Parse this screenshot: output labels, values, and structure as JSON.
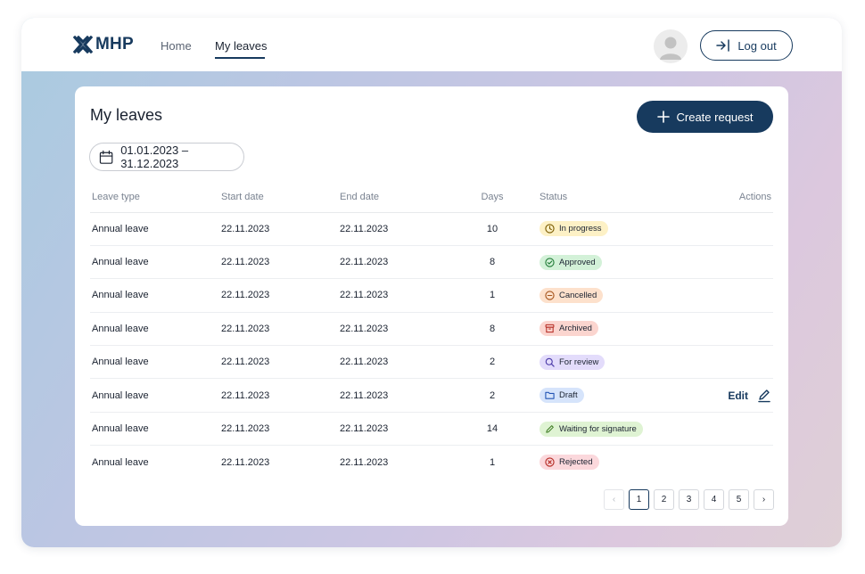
{
  "brand": {
    "name": "MHP"
  },
  "nav": {
    "items": [
      {
        "label": "Home",
        "active": false
      },
      {
        "label": "My leaves",
        "active": true
      }
    ]
  },
  "header": {
    "logout_label": "Log out"
  },
  "main": {
    "title": "My leaves",
    "create_label": "Create request",
    "date_range": "01.01.2023 – 31.12.2023"
  },
  "table": {
    "columns": [
      "Leave type",
      "Start date",
      "End date",
      "Days",
      "Status",
      "Actions"
    ],
    "rows": [
      {
        "type": "Annual leave",
        "start": "22.11.2023",
        "end": "22.11.2023",
        "days": "10",
        "status": "In progress",
        "action": ""
      },
      {
        "type": "Annual leave",
        "start": "22.11.2023",
        "end": "22.11.2023",
        "days": "8",
        "status": "Approved",
        "action": ""
      },
      {
        "type": "Annual leave",
        "start": "22.11.2023",
        "end": "22.11.2023",
        "days": "1",
        "status": "Cancelled",
        "action": ""
      },
      {
        "type": "Annual leave",
        "start": "22.11.2023",
        "end": "22.11.2023",
        "days": "8",
        "status": "Archived",
        "action": ""
      },
      {
        "type": "Annual leave",
        "start": "22.11.2023",
        "end": "22.11.2023",
        "days": "2",
        "status": "For review",
        "action": ""
      },
      {
        "type": "Annual leave",
        "start": "22.11.2023",
        "end": "22.11.2023",
        "days": "2",
        "status": "Draft",
        "action": "Edit"
      },
      {
        "type": "Annual leave",
        "start": "22.11.2023",
        "end": "22.11.2023",
        "days": "14",
        "status": "Waiting for signature",
        "action": ""
      },
      {
        "type": "Annual leave",
        "start": "22.11.2023",
        "end": "22.11.2023",
        "days": "1",
        "status": "Rejected",
        "action": ""
      }
    ]
  },
  "status_styles": {
    "In progress": {
      "bg": "#fdf1c6",
      "fg": "#7a5a00",
      "icon": "clock-icon"
    },
    "Approved": {
      "bg": "#d3f1d8",
      "fg": "#1f7a35",
      "icon": "check-circle-icon"
    },
    "Cancelled": {
      "bg": "#fde1cc",
      "fg": "#a5531b",
      "icon": "minus-circle-icon"
    },
    "Archived": {
      "bg": "#fbd5cf",
      "fg": "#b3261e",
      "icon": "archive-icon"
    },
    "For review": {
      "bg": "#e3dcfb",
      "fg": "#4b3aa8",
      "icon": "search-icon"
    },
    "Draft": {
      "bg": "#d6e4fb",
      "fg": "#2456b5",
      "icon": "folder-icon"
    },
    "Waiting for signature": {
      "bg": "#dff3d3",
      "fg": "#3c7a20",
      "icon": "pen-icon"
    },
    "Rejected": {
      "bg": "#fbd8dc",
      "fg": "#b3261e",
      "icon": "x-circle-icon"
    }
  },
  "pagination": {
    "pages": [
      "1",
      "2",
      "3",
      "4",
      "5"
    ],
    "current": "1",
    "prev": "‹",
    "next": "›"
  },
  "colors": {
    "primary": "#173a5e"
  }
}
